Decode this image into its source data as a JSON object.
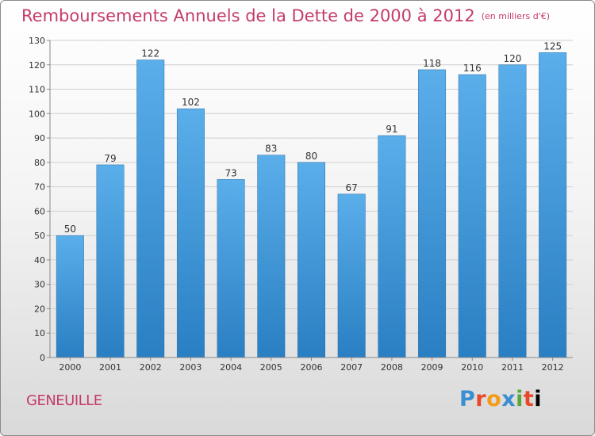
{
  "title": "Remboursements Annuels de la Dette de 2000 à 2012",
  "unit_label": "(en milliers d'€)",
  "commune": "GENEUILLE",
  "logo_text": "Proxiti",
  "colors": {
    "title": "#c43b6a",
    "bar_top": "#5aaeea",
    "bar_bottom": "#2a7fc3",
    "grid": "#cfcfcf",
    "axis_text": "#333333"
  },
  "chart_data": {
    "type": "bar",
    "title": "Remboursements Annuels de la Dette de 2000 à 2012",
    "xlabel": "",
    "ylabel": "",
    "categories": [
      "2000",
      "2001",
      "2002",
      "2003",
      "2004",
      "2005",
      "2006",
      "2007",
      "2008",
      "2009",
      "2010",
      "2011",
      "2012"
    ],
    "values": [
      50,
      79,
      122,
      102,
      73,
      83,
      80,
      67,
      91,
      118,
      116,
      120,
      125
    ],
    "ylim": [
      0,
      130
    ],
    "yticks": [
      0,
      10,
      20,
      30,
      40,
      50,
      60,
      70,
      80,
      90,
      100,
      110,
      120,
      130
    ],
    "grid": true
  }
}
